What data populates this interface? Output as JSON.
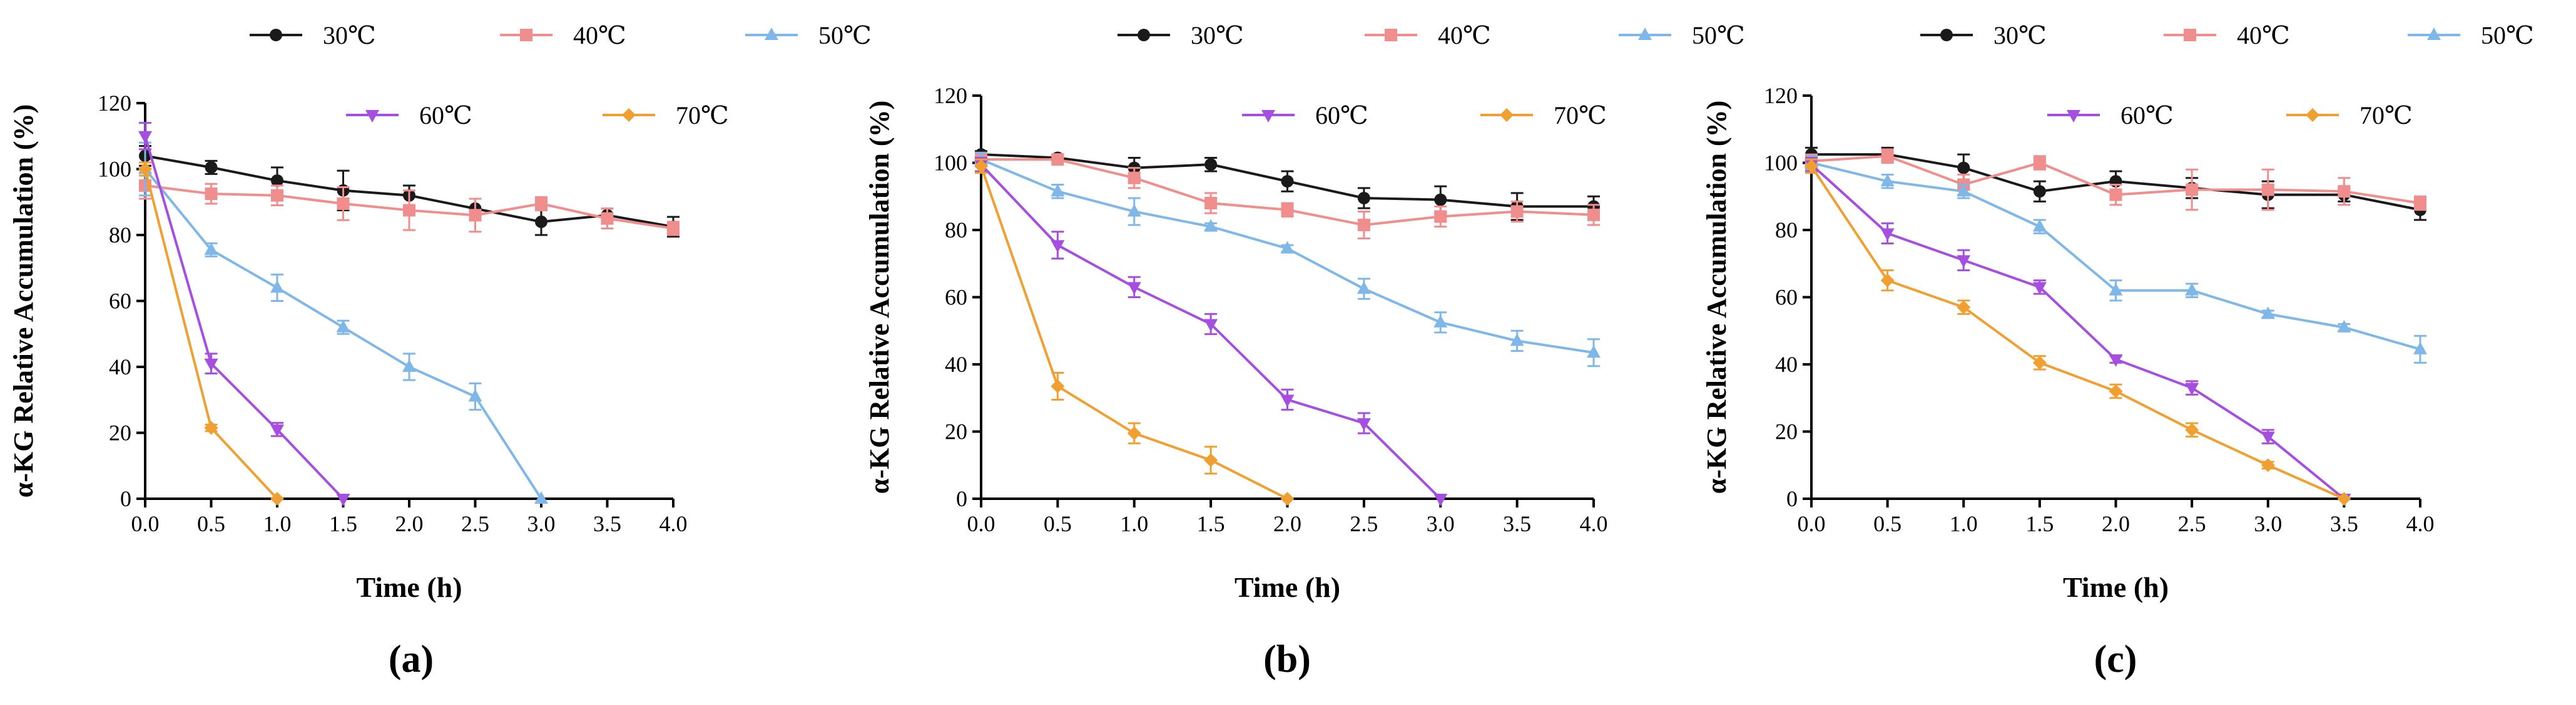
{
  "figure": {
    "panel_labels": [
      "(a)",
      "(b)",
      "(c)"
    ]
  },
  "chart_data": [
    {
      "type": "line",
      "panel_label": "(a)",
      "xlabel": "Time (h)",
      "ylabel": "α-KG Relative Accumulation (%)",
      "xlim": [
        0,
        4
      ],
      "ylim": [
        0,
        120
      ],
      "x_ticks": [
        "0.0",
        "0.5",
        "1.0",
        "1.5",
        "2.0",
        "2.5",
        "3.0",
        "3.5",
        "4.0"
      ],
      "y_ticks": [
        "0",
        "20",
        "40",
        "60",
        "80",
        "100",
        "120"
      ],
      "legend": [
        {
          "name": "30℃",
          "color": "#1a1a1a",
          "marker": "circle"
        },
        {
          "name": "40℃",
          "color": "#f08d8d",
          "marker": "square"
        },
        {
          "name": "50℃",
          "color": "#7fb8e8",
          "marker": "triangle-up"
        },
        {
          "name": "60℃",
          "color": "#a64ee0",
          "marker": "triangle-down"
        },
        {
          "name": "70℃",
          "color": "#f0a030",
          "marker": "diamond"
        }
      ],
      "series": [
        {
          "name": "30℃",
          "color": "#1a1a1a",
          "marker": "circle",
          "x": [
            0,
            0.5,
            1,
            1.5,
            2,
            2.5,
            3,
            3.5,
            4
          ],
          "values": [
            104,
            100.5,
            96.5,
            93.5,
            92,
            88,
            84,
            86,
            82.5
          ],
          "errors": [
            3,
            2,
            4,
            6,
            3,
            3,
            4,
            2,
            3
          ]
        },
        {
          "name": "40℃",
          "color": "#f08d8d",
          "marker": "square",
          "x": [
            0,
            0.5,
            1,
            1.5,
            2,
            2.5,
            3,
            3.5,
            4
          ],
          "values": [
            95,
            92.5,
            92,
            89.5,
            87.5,
            86,
            89.5,
            85,
            82
          ],
          "errors": [
            4,
            3,
            3,
            5,
            6,
            5,
            2,
            3,
            2
          ]
        },
        {
          "name": "50℃",
          "color": "#7fb8e8",
          "marker": "triangle-up",
          "x": [
            0,
            0.5,
            1,
            1.5,
            2,
            2.5,
            3
          ],
          "values": [
            100,
            75.5,
            64,
            52,
            40,
            31,
            0
          ],
          "errors": [
            8,
            2,
            4,
            2,
            4,
            4,
            0
          ]
        },
        {
          "name": "60℃",
          "color": "#a64ee0",
          "marker": "triangle-down",
          "x": [
            0,
            0.5,
            1,
            1.5
          ],
          "values": [
            110,
            41,
            21,
            0
          ],
          "errors": [
            4,
            3,
            2,
            0
          ]
        },
        {
          "name": "70℃",
          "color": "#f0a030",
          "marker": "diamond",
          "x": [
            0,
            0.5,
            1
          ],
          "values": [
            100,
            21.5,
            0
          ],
          "errors": [
            2,
            1,
            0
          ]
        }
      ]
    },
    {
      "type": "line",
      "panel_label": "(b)",
      "xlabel": "Time (h)",
      "ylabel": "α-KG Relative Accumulation (%)",
      "xlim": [
        0,
        4
      ],
      "ylim": [
        0,
        120
      ],
      "x_ticks": [
        "0.0",
        "0.5",
        "1.0",
        "1.5",
        "2.0",
        "2.5",
        "3.0",
        "3.5",
        "4.0"
      ],
      "y_ticks": [
        "0",
        "20",
        "40",
        "60",
        "80",
        "100",
        "120"
      ],
      "legend": [
        {
          "name": "30℃",
          "color": "#1a1a1a",
          "marker": "circle"
        },
        {
          "name": "40℃",
          "color": "#f08d8d",
          "marker": "square"
        },
        {
          "name": "50℃",
          "color": "#7fb8e8",
          "marker": "triangle-up"
        },
        {
          "name": "60℃",
          "color": "#a64ee0",
          "marker": "triangle-down"
        },
        {
          "name": "70℃",
          "color": "#f0a030",
          "marker": "diamond"
        }
      ],
      "series": [
        {
          "name": "30℃",
          "color": "#1a1a1a",
          "marker": "circle",
          "x": [
            0,
            0.5,
            1,
            1.5,
            2,
            2.5,
            3,
            3.5,
            4
          ],
          "values": [
            102.5,
            101.5,
            98.5,
            99.5,
            94.5,
            89.5,
            89,
            87,
            87
          ],
          "errors": [
            1,
            1,
            3,
            2,
            3,
            3,
            4,
            4,
            3
          ]
        },
        {
          "name": "40℃",
          "color": "#f08d8d",
          "marker": "square",
          "x": [
            0,
            0.5,
            1,
            1.5,
            2,
            2.5,
            3,
            3.5,
            4
          ],
          "values": [
            101,
            101,
            95.5,
            88,
            86,
            81.5,
            84,
            85.5,
            84.5
          ],
          "errors": [
            2,
            1,
            3,
            3,
            2,
            4,
            3,
            3,
            3
          ]
        },
        {
          "name": "50℃",
          "color": "#7fb8e8",
          "marker": "triangle-up",
          "x": [
            0,
            0.5,
            1,
            1.5,
            2,
            2.5,
            3,
            3.5,
            4
          ],
          "values": [
            101,
            91.5,
            85.5,
            81,
            74.5,
            62.5,
            52.5,
            47,
            43.5
          ],
          "errors": [
            2,
            2,
            4,
            1,
            1,
            3,
            3,
            3,
            4
          ]
        },
        {
          "name": "60℃",
          "color": "#a64ee0",
          "marker": "triangle-down",
          "x": [
            0,
            0.5,
            1,
            1.5,
            2,
            2.5,
            3
          ],
          "values": [
            99.5,
            75.5,
            63,
            52,
            29.5,
            22.5,
            0
          ],
          "errors": [
            2,
            4,
            3,
            3,
            3,
            3,
            0
          ]
        },
        {
          "name": "70℃",
          "color": "#f0a030",
          "marker": "diamond",
          "x": [
            0,
            0.5,
            1,
            1.5,
            2
          ],
          "values": [
            99,
            33.5,
            19.5,
            11.5,
            0
          ],
          "errors": [
            2,
            4,
            3,
            4,
            0
          ]
        }
      ]
    },
    {
      "type": "line",
      "panel_label": "(c)",
      "xlabel": "Time (h)",
      "ylabel": "α-KG Relative Accumulation (%)",
      "xlim": [
        0,
        4
      ],
      "ylim": [
        0,
        120
      ],
      "x_ticks": [
        "0.0",
        "0.5",
        "1.0",
        "1.5",
        "2.0",
        "2.5",
        "3.0",
        "3.5",
        "4.0"
      ],
      "y_ticks": [
        "0",
        "20",
        "40",
        "60",
        "80",
        "100",
        "120"
      ],
      "legend": [
        {
          "name": "30℃",
          "color": "#1a1a1a",
          "marker": "circle"
        },
        {
          "name": "40℃",
          "color": "#f08d8d",
          "marker": "square"
        },
        {
          "name": "50℃",
          "color": "#7fb8e8",
          "marker": "triangle-up"
        },
        {
          "name": "60℃",
          "color": "#a64ee0",
          "marker": "triangle-down"
        },
        {
          "name": "70℃",
          "color": "#f0a030",
          "marker": "diamond"
        }
      ],
      "series": [
        {
          "name": "30℃",
          "color": "#1a1a1a",
          "marker": "circle",
          "x": [
            0,
            0.5,
            1,
            1.5,
            2,
            2.5,
            3,
            3.5,
            4
          ],
          "values": [
            102.5,
            102.5,
            98.5,
            91.5,
            94.5,
            92.5,
            90.5,
            90.5,
            86
          ],
          "errors": [
            2,
            2,
            4,
            3,
            3,
            3,
            4,
            2,
            3
          ]
        },
        {
          "name": "40℃",
          "color": "#f08d8d",
          "marker": "square",
          "x": [
            0,
            0.5,
            1,
            1.5,
            2,
            2.5,
            3,
            3.5,
            4
          ],
          "values": [
            100.5,
            102,
            93.5,
            100,
            90.5,
            92,
            92,
            91.5,
            88
          ],
          "errors": [
            2,
            2,
            3,
            2,
            3,
            6,
            6,
            4,
            2
          ]
        },
        {
          "name": "50℃",
          "color": "#7fb8e8",
          "marker": "triangle-up",
          "x": [
            0,
            0.5,
            1,
            1.5,
            2,
            2.5,
            3,
            3.5,
            4
          ],
          "values": [
            100,
            94.5,
            91.5,
            81,
            62,
            62,
            55,
            51,
            44.5
          ],
          "errors": [
            2,
            2,
            2,
            2,
            3,
            2,
            1,
            1,
            4
          ]
        },
        {
          "name": "60℃",
          "color": "#a64ee0",
          "marker": "triangle-down",
          "x": [
            0,
            0.5,
            1,
            1.5,
            2,
            2.5,
            3,
            3.5
          ],
          "values": [
            99.5,
            79,
            71,
            63,
            41.5,
            33,
            18.5,
            0
          ],
          "errors": [
            2,
            3,
            3,
            2,
            1,
            2,
            2,
            0
          ]
        },
        {
          "name": "70℃",
          "color": "#f0a030",
          "marker": "diamond",
          "x": [
            0,
            0.5,
            1,
            1.5,
            2,
            2.5,
            3,
            3.5
          ],
          "values": [
            99,
            65,
            57,
            40.5,
            32,
            20.5,
            10,
            0
          ],
          "errors": [
            2,
            3,
            2,
            2,
            2,
            2,
            1,
            0
          ]
        }
      ]
    }
  ]
}
